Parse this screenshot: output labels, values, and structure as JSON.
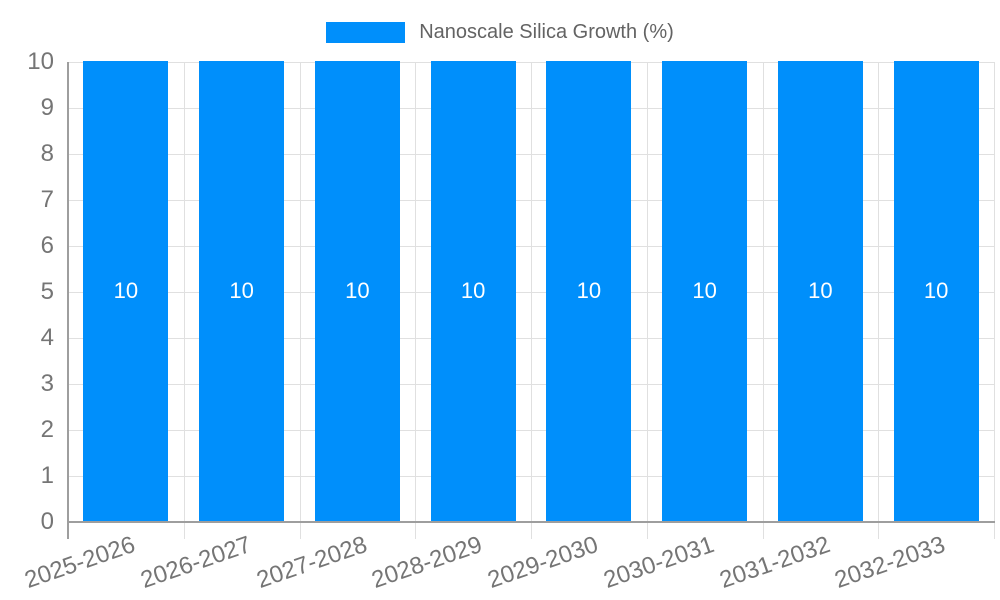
{
  "chart_data": {
    "type": "bar",
    "title": "Nanoscale Silica Growth (%)",
    "categories": [
      "2025-2026",
      "2026-2027",
      "2027-2028",
      "2028-2029",
      "2029-2030",
      "2030-2031",
      "2031-2032",
      "2032-2033"
    ],
    "values": [
      10,
      10,
      10,
      10,
      10,
      10,
      10,
      10
    ],
    "bar_labels": [
      "10",
      "10",
      "10",
      "10",
      "10",
      "10",
      "10",
      "10"
    ],
    "xlabel": "",
    "ylabel": "",
    "ylim": [
      0,
      10
    ],
    "yticks": [
      0,
      1,
      2,
      3,
      4,
      5,
      6,
      7,
      8,
      9,
      10
    ],
    "grid": true,
    "legend_position": "top",
    "colors": {
      "bar": "#008ffb",
      "bar_label_text": "#ffffff",
      "axis_text": "#757575",
      "legend_text": "#636363",
      "gridline": "#e0e0e0",
      "axis_line": "#9e9e9e",
      "background": "#ffffff"
    }
  }
}
